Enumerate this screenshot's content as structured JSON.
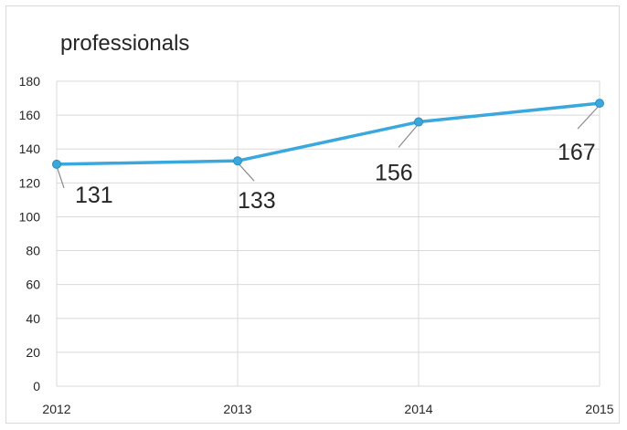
{
  "chart_data": {
    "type": "line",
    "title": "professionals",
    "xlabel": "",
    "ylabel": "",
    "categories": [
      "2012",
      "2013",
      "2014",
      "2015"
    ],
    "series": [
      {
        "values": [
          131,
          133,
          156,
          167
        ],
        "color": "#3aa8dd"
      }
    ],
    "data_labels": [
      "131",
      "133",
      "156",
      "167"
    ],
    "ylim": [
      0,
      180
    ],
    "yticks": [
      "0",
      "20",
      "40",
      "60",
      "80",
      "100",
      "120",
      "140",
      "160",
      "180"
    ],
    "grid": {
      "horizontal": true,
      "vertical": true
    },
    "legend": "none",
    "colors": {
      "gridline": "#d9d9d9",
      "leader": "#8c8c8c",
      "text": "#262626"
    }
  }
}
